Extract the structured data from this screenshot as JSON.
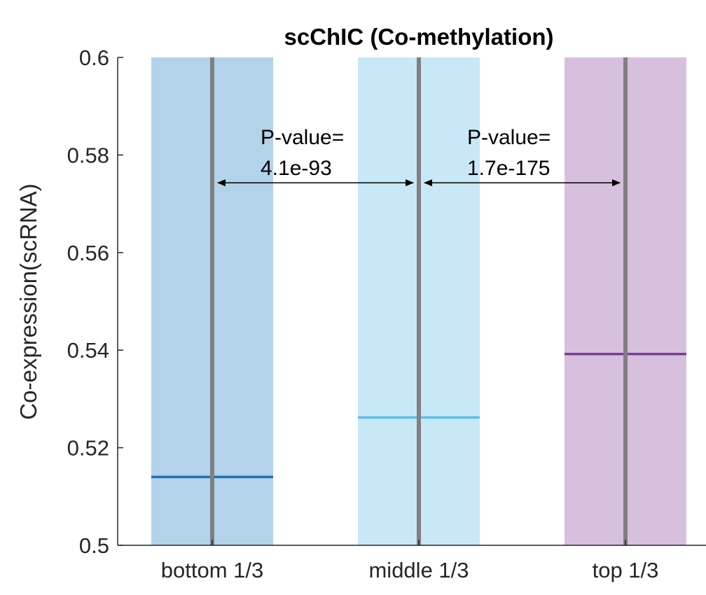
{
  "chart_data": {
    "type": "box",
    "title": "scChIC (Co-methylation)",
    "xlabel": "",
    "ylabel": "Co-expression(scRNA)",
    "ylim": [
      0.5,
      0.6
    ],
    "yticks": [
      0.5,
      0.52,
      0.54,
      0.56,
      0.58,
      0.6
    ],
    "ytick_labels": [
      "0.5",
      "0.52",
      "0.54",
      "0.56",
      "0.58",
      "0.6"
    ],
    "categories": [
      "bottom 1/3",
      "middle 1/3",
      "top 1/3"
    ],
    "boxes": [
      {
        "category": "bottom 1/3",
        "median": 0.514,
        "q1": 0.5,
        "q3": 0.6,
        "fill": "#b3d3ea",
        "median_color": "#1f6fba"
      },
      {
        "category": "middle 1/3",
        "median": 0.5262,
        "q1": 0.5,
        "q3": 0.6,
        "fill": "#c8e8f7",
        "median_color": "#5dbdea"
      },
      {
        "category": "top 1/3",
        "median": 0.5392,
        "q1": 0.5,
        "q3": 0.6,
        "fill": "#d7c0de",
        "median_color": "#7b3d92"
      }
    ],
    "whisker_color": "#808080",
    "annotations": [
      {
        "line1": "P-value=",
        "line2": "4.1e-93",
        "from": "bottom 1/3",
        "to": "middle 1/3",
        "y": 0.5743
      },
      {
        "line1": "P-value=",
        "line2": "1.7e-175",
        "from": "middle 1/3",
        "to": "top 1/3",
        "y": 0.5743
      }
    ],
    "grid": false,
    "legend": "none"
  }
}
